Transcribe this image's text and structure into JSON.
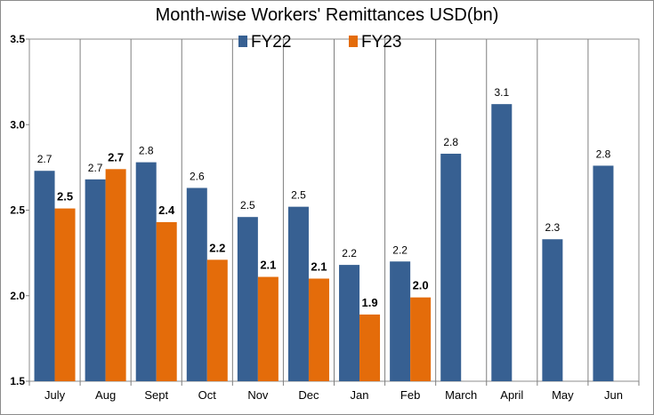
{
  "chart_data": {
    "type": "bar",
    "title": "Month-wise Workers' Remittances USD(bn)",
    "categories": [
      "July",
      "Aug",
      "Sept",
      "Oct",
      "Nov",
      "Dec",
      "Jan",
      "Feb",
      "March",
      "April",
      "May",
      "Jun"
    ],
    "series": [
      {
        "name": "FY22",
        "color": "#376092",
        "values": [
          2.73,
          2.68,
          2.78,
          2.63,
          2.46,
          2.52,
          2.18,
          2.2,
          2.83,
          3.12,
          2.33,
          2.76
        ],
        "labels": [
          "2.7",
          "2.7",
          "2.8",
          "2.6",
          "2.5",
          "2.5",
          "2.2",
          "2.2",
          "2.8",
          "3.1",
          "2.3",
          "2.8"
        ]
      },
      {
        "name": "FY23",
        "color": "#E46C0A",
        "values": [
          2.51,
          2.74,
          2.43,
          2.21,
          2.11,
          2.1,
          1.89,
          1.99,
          null,
          null,
          null,
          null
        ],
        "labels": [
          "2.5",
          "2.7",
          "2.4",
          "2.2",
          "2.1",
          "2.1",
          "1.9",
          "2.0",
          null,
          null,
          null,
          null
        ]
      }
    ],
    "ylim": [
      1.5,
      3.5
    ],
    "yticks": [
      "1.5",
      "2.0",
      "2.5",
      "3.0",
      "3.5"
    ],
    "grid": "vertical category separators",
    "legend": "top-center"
  }
}
